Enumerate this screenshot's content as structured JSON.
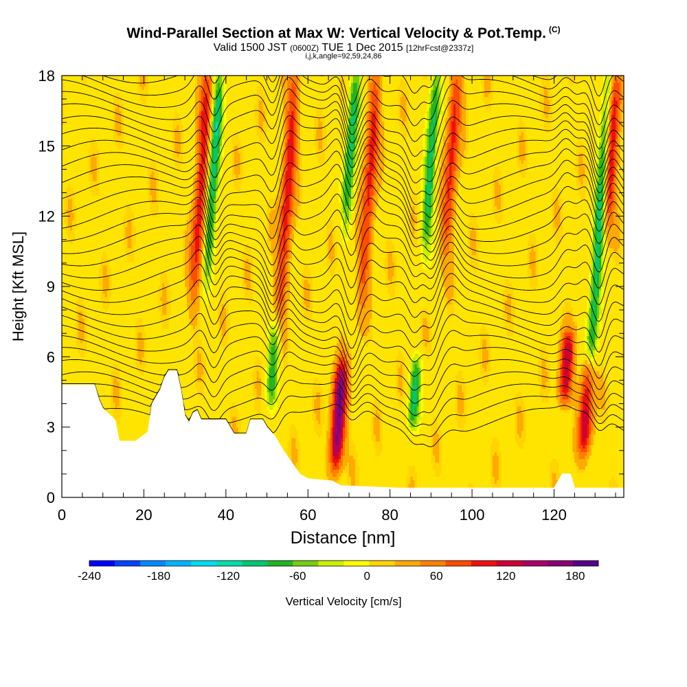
{
  "header": {
    "title": "Wind-Parallel Section at Max W: Vertical Velocity & Pot.Temp.",
    "copyright_mark": "(C)",
    "valid_prefix": "Valid 1500 JST",
    "valid_zulu": "(0600Z)",
    "valid_date": "TUE 1 Dec 2015",
    "forecast_note": "[12hrFcst@2337z]",
    "params": "i,j,k,angle=92,59,24,86"
  },
  "colorbar": {
    "title": "Vertical Velocity [cm/s]",
    "tick_labels": [
      "-240",
      "-180",
      "-120",
      "-60",
      "0",
      "60",
      "120",
      "180"
    ],
    "tick_values": [
      -240,
      -180,
      -120,
      -60,
      0,
      60,
      120,
      180
    ],
    "range": [
      -240,
      200
    ],
    "colors": [
      "#0000ff",
      "#0044ff",
      "#0088ff",
      "#00b4ff",
      "#00ddee",
      "#00dcaa",
      "#00c870",
      "#22b422",
      "#77cc11",
      "#ccee00",
      "#ffff00",
      "#ffd400",
      "#ffaa00",
      "#ff7f00",
      "#ff4c00",
      "#ee1111",
      "#cc0033",
      "#aa0066",
      "#880077",
      "#550088"
    ]
  },
  "chart_data": {
    "type": "heatmap",
    "title": "Wind-Parallel Section at Max W: Vertical Velocity & Pot.Temp.",
    "xlabel": "Distance [nm]",
    "ylabel": "Height [Kft MSL]",
    "xlim": [
      0,
      137
    ],
    "ylim": [
      0,
      18
    ],
    "x_ticks": [
      0,
      20,
      40,
      60,
      80,
      100,
      120
    ],
    "x_tick_labels": [
      "0",
      "20",
      "40",
      "60",
      "80",
      "100",
      "120"
    ],
    "y_ticks": [
      0,
      3,
      6,
      9,
      12,
      15,
      18
    ],
    "y_tick_labels": [
      "0",
      "3",
      "6",
      "9",
      "12",
      "15",
      "18"
    ],
    "field": "Vertical Velocity [cm/s]",
    "contour_field": "Potential Temperature",
    "updraft_cores": [
      {
        "x": 34,
        "y_range": [
          9,
          18
        ],
        "w_max": 110
      },
      {
        "x": 55,
        "y_range": [
          8,
          18
        ],
        "w_max": 105
      },
      {
        "x": 67.5,
        "y_range": [
          1.8,
          5.2
        ],
        "w_max": 190
      },
      {
        "x": 75,
        "y_range": [
          9,
          18
        ],
        "w_max": 100
      },
      {
        "x": 95,
        "y_range": [
          11,
          18
        ],
        "w_max": 100
      },
      {
        "x": 123,
        "y_range": [
          4.5,
          6.5
        ],
        "w_max": 130
      },
      {
        "x": 128,
        "y_range": [
          2.5,
          5.5
        ],
        "w_max": 150
      },
      {
        "x": 134,
        "y_range": [
          12,
          18
        ],
        "w_max": 120
      }
    ],
    "downdraft_cores": [
      {
        "x": 37,
        "y_range": [
          10,
          18
        ],
        "w_min": -100
      },
      {
        "x": 51.5,
        "y_range": [
          4.5,
          7
        ],
        "w_min": -80
      },
      {
        "x": 70.5,
        "y_range": [
          12,
          18
        ],
        "w_min": -90
      },
      {
        "x": 86,
        "y_range": [
          3.5,
          5.5
        ],
        "w_min": -85
      },
      {
        "x": 90,
        "y_range": [
          11,
          18
        ],
        "w_min": -90
      },
      {
        "x": 131,
        "y_range": [
          5,
          18
        ],
        "w_min": -100
      }
    ],
    "terrain": [
      [
        0,
        4.8
      ],
      [
        8,
        4.8
      ],
      [
        9,
        4.2
      ],
      [
        10,
        3.8
      ],
      [
        13,
        3.3
      ],
      [
        14,
        2.4
      ],
      [
        18,
        2.4
      ],
      [
        21,
        2.8
      ],
      [
        22,
        4.0
      ],
      [
        24,
        4.6
      ],
      [
        25,
        5.1
      ],
      [
        26,
        5.4
      ],
      [
        28,
        5.4
      ],
      [
        29,
        4.6
      ],
      [
        30,
        3.5
      ],
      [
        31,
        3.2
      ],
      [
        32,
        3.6
      ],
      [
        33,
        3.7
      ],
      [
        34,
        3.3
      ],
      [
        40,
        3.3
      ],
      [
        42,
        2.7
      ],
      [
        45,
        2.7
      ],
      [
        46,
        3.3
      ],
      [
        49,
        3.3
      ],
      [
        50,
        3.0
      ],
      [
        52,
        2.6
      ],
      [
        54,
        2.0
      ],
      [
        56,
        1.5
      ],
      [
        58,
        1.0
      ],
      [
        60,
        0.8
      ],
      [
        66,
        0.7
      ],
      [
        68,
        0.5
      ],
      [
        82,
        0.4
      ],
      [
        120,
        0.4
      ],
      [
        122,
        1.0
      ],
      [
        124,
        1.0
      ],
      [
        125,
        0.4
      ],
      [
        137,
        0.4
      ]
    ]
  }
}
